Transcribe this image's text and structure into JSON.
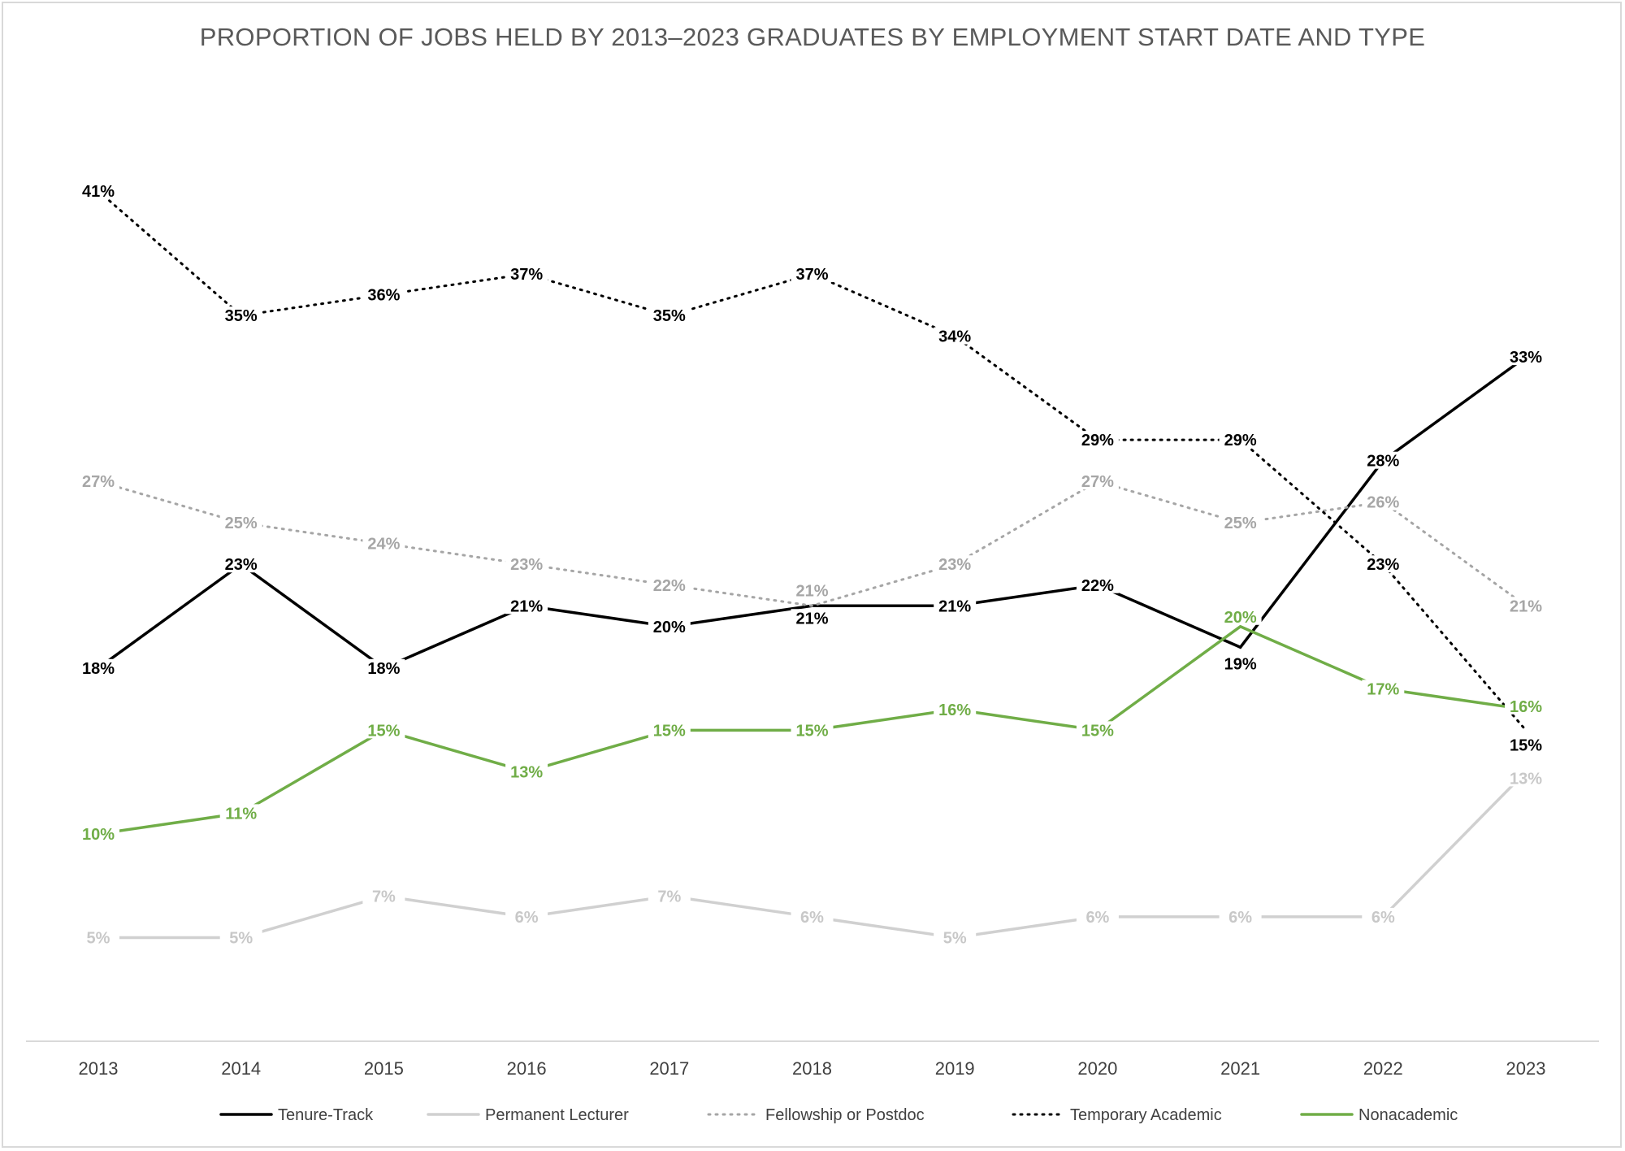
{
  "chart_data": {
    "type": "line",
    "title": "PROPORTION OF JOBS HELD BY 2013–2023 GRADUATES BY EMPLOYMENT START DATE AND TYPE",
    "xlabel": "",
    "ylabel": "",
    "categories": [
      "2013",
      "2014",
      "2015",
      "2016",
      "2017",
      "2018",
      "2019",
      "2020",
      "2021",
      "2022",
      "2023"
    ],
    "ylim": [
      0,
      45
    ],
    "value_format": "percent",
    "grid": false,
    "legend_position": "bottom",
    "series": [
      {
        "name": "Tenure-Track",
        "color": "#000000",
        "label_color": "#000000",
        "style": "solid",
        "values": [
          18,
          23,
          18,
          21,
          20,
          21,
          21,
          22,
          19,
          28,
          33
        ]
      },
      {
        "name": "Permanent Lecturer",
        "color": "#d0d0d0",
        "label_color": "#c8c8c8",
        "style": "solid",
        "values": [
          5,
          5,
          7,
          6,
          7,
          6,
          5,
          6,
          6,
          6,
          13
        ]
      },
      {
        "name": "Fellowship or Postdoc",
        "color": "#a6a6a6",
        "label_color": "#a6a6a6",
        "style": "dotted",
        "values": [
          27,
          25,
          24,
          23,
          22,
          21,
          23,
          27,
          25,
          26,
          21
        ]
      },
      {
        "name": "Temporary Academic",
        "color": "#000000",
        "label_color": "#000000",
        "style": "dotted",
        "values": [
          41,
          35,
          36,
          37,
          35,
          37,
          34,
          29,
          29,
          23,
          15
        ]
      },
      {
        "name": "Nonacademic",
        "color": "#70ad47",
        "label_color": "#70ad47",
        "style": "solid",
        "values": [
          10,
          11,
          15,
          13,
          15,
          15,
          16,
          15,
          20,
          17,
          16
        ]
      }
    ]
  }
}
